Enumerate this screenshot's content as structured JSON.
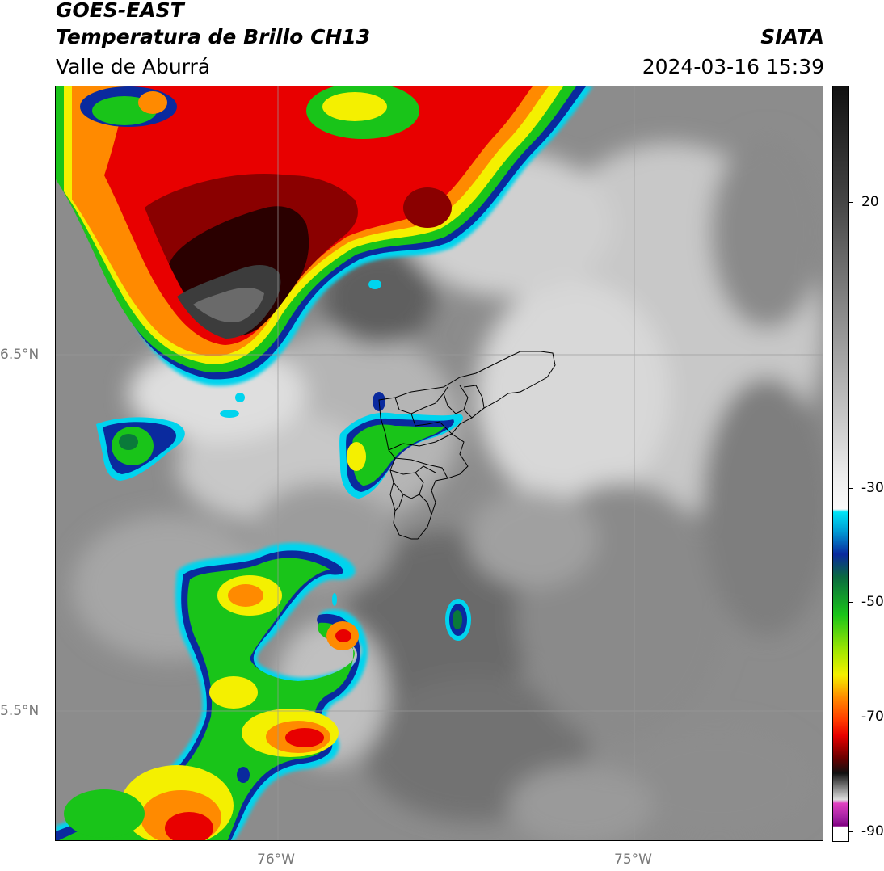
{
  "header": {
    "satellite": "GOES-EAST",
    "product": "Temperatura de Brillo CH13",
    "region": "Valle de Aburrá",
    "source": "SIATA",
    "datetime": "2024-03-16 15:39"
  },
  "map": {
    "lon_labels": [
      "76°W",
      "75°W"
    ],
    "lat_labels": [
      "6.5°N",
      "5.5°N"
    ],
    "gridlines": true,
    "overlay": "municipal boundaries (Valle de Aburrá)"
  },
  "colorbar": {
    "ticks": [
      "20",
      "-30",
      "-50",
      "-70",
      "-90"
    ],
    "range": [
      -90,
      30
    ],
    "colors": {
      "warm_gray_top": "#111111",
      "light_gray": "#f2f2f2",
      "cyan": "#00d8f0",
      "blue": "#0a2a9e",
      "green": "#19c419",
      "yellow": "#f4f000",
      "orange": "#ff8a00",
      "red": "#e80000",
      "dark_red": "#2a0000",
      "magenta": "#e040c0",
      "purple": "#800080"
    }
  }
}
